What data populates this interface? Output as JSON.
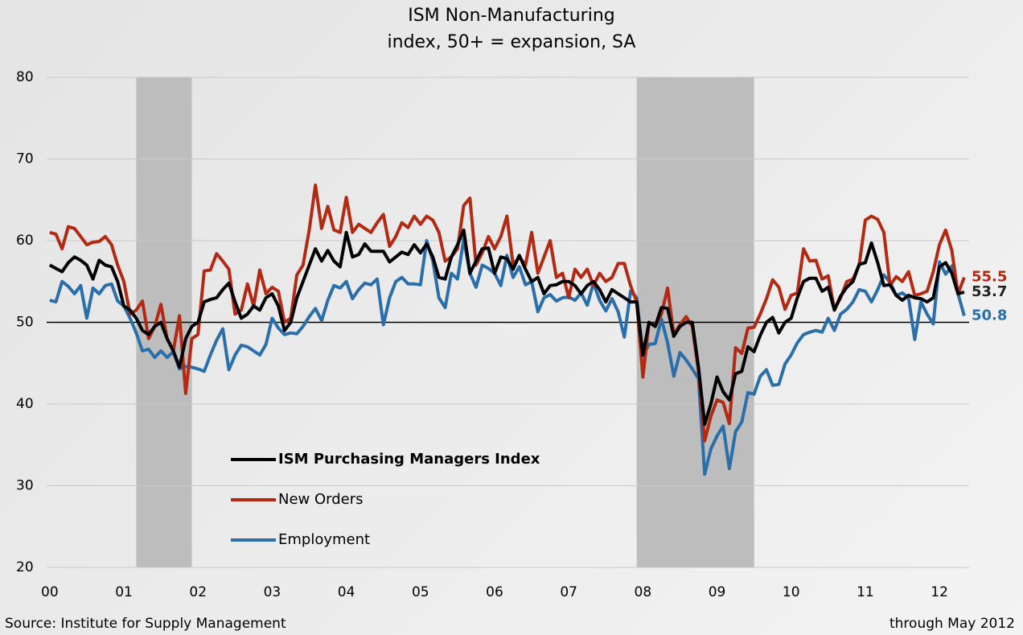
{
  "chart_data": {
    "type": "line",
    "title": "ISM Non-Manufacturing",
    "subtitle": "index, 50+ = expansion, SA",
    "source": "Source: Institute for Supply Management",
    "note": "through May 2012",
    "x": [
      0,
      1,
      2,
      3,
      4,
      5,
      6,
      7,
      8,
      9,
      10,
      11,
      12,
      13,
      14,
      15,
      16,
      17,
      18,
      19,
      20,
      21,
      22,
      23,
      24,
      25,
      26,
      27,
      28,
      29,
      30,
      31,
      32,
      33,
      34,
      35,
      36,
      37,
      38,
      39,
      40,
      41,
      42,
      43,
      44,
      45,
      46,
      47,
      48,
      49,
      50,
      51,
      52,
      53,
      54,
      55,
      56,
      57,
      58,
      59,
      60,
      61,
      62,
      63,
      64,
      65,
      66,
      67,
      68,
      69,
      70,
      71,
      72,
      73,
      74,
      75,
      76,
      77,
      78,
      79,
      80,
      81,
      82,
      83,
      84,
      85,
      86,
      87,
      88,
      89,
      90,
      91,
      92,
      93,
      94,
      95,
      96,
      97,
      98,
      99,
      100,
      101,
      102,
      103,
      104,
      105,
      106,
      107,
      108,
      109,
      110,
      111,
      112,
      113,
      114,
      115,
      116,
      117,
      118,
      119,
      120,
      121,
      122,
      123,
      124,
      125,
      126,
      127,
      128,
      129,
      130,
      131,
      132,
      133,
      134,
      135,
      136,
      137,
      138,
      139,
      140,
      141,
      142,
      143,
      144,
      145,
      146,
      147,
      148
    ],
    "series": [
      {
        "name": "ISM Purchasing Managers Index",
        "color": "#000000",
        "values": [
          57,
          56.6,
          56.2,
          57.3,
          58,
          57.6,
          57,
          55.3,
          57.6,
          57,
          56.8,
          55,
          52,
          51.5,
          50.5,
          49,
          48.5,
          49.5,
          50,
          48,
          46.5,
          44.5,
          48,
          49.5,
          50,
          52.5,
          52.8,
          53,
          54,
          54.8,
          52.5,
          50.5,
          51,
          52,
          51.5,
          53,
          53.5,
          52,
          49,
          50,
          53,
          55,
          57,
          59,
          57.5,
          58.8,
          57.5,
          56.8,
          61,
          58,
          58.3,
          59.6,
          58.7,
          58.7,
          58.7,
          57.4,
          58,
          58.6,
          58.3,
          59.5,
          58.5,
          59.6,
          58,
          55.5,
          55.3,
          58,
          59.5,
          61.3,
          56,
          57.5,
          59,
          59.1,
          56,
          58,
          57.8,
          56.5,
          58.2,
          56.5,
          55,
          55.5,
          53.5,
          54.5,
          54.6,
          55,
          55,
          54.5,
          53.5,
          54.5,
          55,
          54,
          52.5,
          54,
          53.5,
          53,
          52.5,
          52.5,
          46,
          50,
          49.5,
          51.8,
          51.7,
          48.3,
          49.5,
          50,
          50,
          44.5,
          37.5,
          40,
          43.3,
          41.5,
          40.5,
          43.7,
          44,
          47,
          46.4,
          48.4,
          50,
          50.6,
          48.7,
          50,
          50.5,
          53,
          55,
          55.4,
          55.4,
          53.8,
          54.3,
          51.5,
          53.2,
          54.3,
          55,
          57.1,
          57.3,
          59.7,
          57.3,
          54.5,
          54.6,
          53.3,
          52.7,
          53.3,
          53,
          52.9,
          52.5,
          53,
          56.8,
          57.3,
          56,
          53.5,
          53.7
        ]
      },
      {
        "name": "New Orders",
        "color": "#b22a13",
        "values": [
          61,
          60.8,
          59,
          61.7,
          61.5,
          60.5,
          59.5,
          59.8,
          59.9,
          60.5,
          59.5,
          57,
          55,
          51,
          51.5,
          52.6,
          48,
          49.5,
          52.2,
          48,
          46.5,
          50.8,
          41.3,
          48,
          48.5,
          56.3,
          56.4,
          58.4,
          57.5,
          56.5,
          51,
          51.5,
          54.7,
          52,
          56.4,
          53.5,
          54.3,
          53.8,
          50,
          50.5,
          55.8,
          57,
          61.3,
          66.8,
          61.5,
          64.2,
          61.3,
          61,
          65.3,
          61,
          62,
          61.5,
          61,
          62.2,
          63.2,
          59.3,
          60.5,
          62.2,
          61.6,
          63,
          62,
          63,
          62.5,
          61,
          57.5,
          58,
          59,
          64.3,
          65.2,
          57,
          58.5,
          60.5,
          59,
          60.5,
          63,
          57,
          58,
          57,
          61,
          56,
          58,
          60,
          55.5,
          56,
          53,
          56.5,
          55.5,
          56.5,
          54.5,
          56,
          55,
          55.5,
          57.2,
          57.2,
          54.5,
          52.5,
          43.3,
          50,
          49.5,
          51,
          54.2,
          48.5,
          49.7,
          50.7,
          49.5,
          44,
          35.5,
          38.5,
          40.5,
          40.2,
          37.6,
          46.9,
          46.2,
          49.3,
          49.4,
          51,
          52.9,
          55.2,
          54.3,
          51.6,
          53.3,
          53.6,
          59,
          57.5,
          57.6,
          55.3,
          55.7,
          51.6,
          53,
          55,
          55.3,
          57,
          62.5,
          63,
          62.6,
          61,
          54.5,
          55.6,
          55,
          56.2,
          53.3,
          53.5,
          53.8,
          56.2,
          59.5,
          61.3,
          58.8,
          53.5,
          55.5
        ]
      },
      {
        "name": "Employment",
        "color": "#2b6faa",
        "values": [
          52.7,
          52.5,
          55,
          54.4,
          53.5,
          54.5,
          50.5,
          54.2,
          53.5,
          54.5,
          54.7,
          52.6,
          52,
          50.5,
          48.7,
          46.5,
          46.7,
          45.7,
          46.5,
          45.7,
          46.4,
          44.3,
          44.6,
          44.5,
          44.3,
          44,
          46,
          47.8,
          49.2,
          44.2,
          46,
          47.2,
          47,
          46.5,
          46,
          47.3,
          50.5,
          49.3,
          48.5,
          48.7,
          48.6,
          49.5,
          50.7,
          51.7,
          50.2,
          52.7,
          54.5,
          54.2,
          55,
          52.9,
          54,
          54.8,
          54.6,
          55.3,
          49.7,
          53,
          55,
          55.5,
          54.7,
          54.7,
          54.6,
          60,
          57.5,
          53,
          51.8,
          56,
          55.3,
          60.2,
          56,
          54.3,
          57,
          56.6,
          56,
          54.5,
          58.2,
          55.5,
          56.8,
          54.6,
          55,
          51.3,
          53,
          53.4,
          52.6,
          53,
          53.1,
          52.7,
          53.6,
          52.1,
          54.8,
          52.7,
          51.4,
          52.9,
          51.3,
          48.2,
          53.8,
          53,
          45.9,
          47.3,
          47.4,
          50.4,
          47.5,
          43.4,
          46.3,
          45.4,
          44.3,
          43.1,
          31.4,
          34.5,
          36.1,
          37.3,
          32.1,
          36.6,
          37.8,
          41.4,
          41.2,
          43.4,
          44.2,
          42.3,
          42.4,
          44.9,
          46,
          47.5,
          48.5,
          48.8,
          49,
          48.8,
          50.5,
          49,
          51,
          51.6,
          52.5,
          54,
          53.8,
          52.5,
          54,
          55.8,
          54.9,
          53.3,
          53.6,
          53,
          47.9,
          52.5,
          51,
          49.8,
          57.4,
          55.9,
          56.9,
          53.5,
          50.8
        ]
      }
    ],
    "shaded_ranges": [
      [
        14,
        23
      ],
      [
        95,
        114
      ]
    ],
    "reference_line": 50,
    "xlim": [
      -0.5,
      148.8
    ],
    "xticks": [
      {
        "value": 0,
        "label": "00"
      },
      {
        "value": 12,
        "label": "01"
      },
      {
        "value": 24,
        "label": "02"
      },
      {
        "value": 36,
        "label": "03"
      },
      {
        "value": 48,
        "label": "04"
      },
      {
        "value": 60,
        "label": "05"
      },
      {
        "value": 72,
        "label": "06"
      },
      {
        "value": 84,
        "label": "07"
      },
      {
        "value": 96,
        "label": "08"
      },
      {
        "value": 108,
        "label": "09"
      },
      {
        "value": 120,
        "label": "10"
      },
      {
        "value": 132,
        "label": "11"
      },
      {
        "value": 144,
        "label": "12"
      }
    ],
    "ylim": [
      20,
      80
    ],
    "yticks": [
      20,
      30,
      40,
      50,
      60,
      70,
      80
    ],
    "grid": true,
    "legend": "left"
  }
}
